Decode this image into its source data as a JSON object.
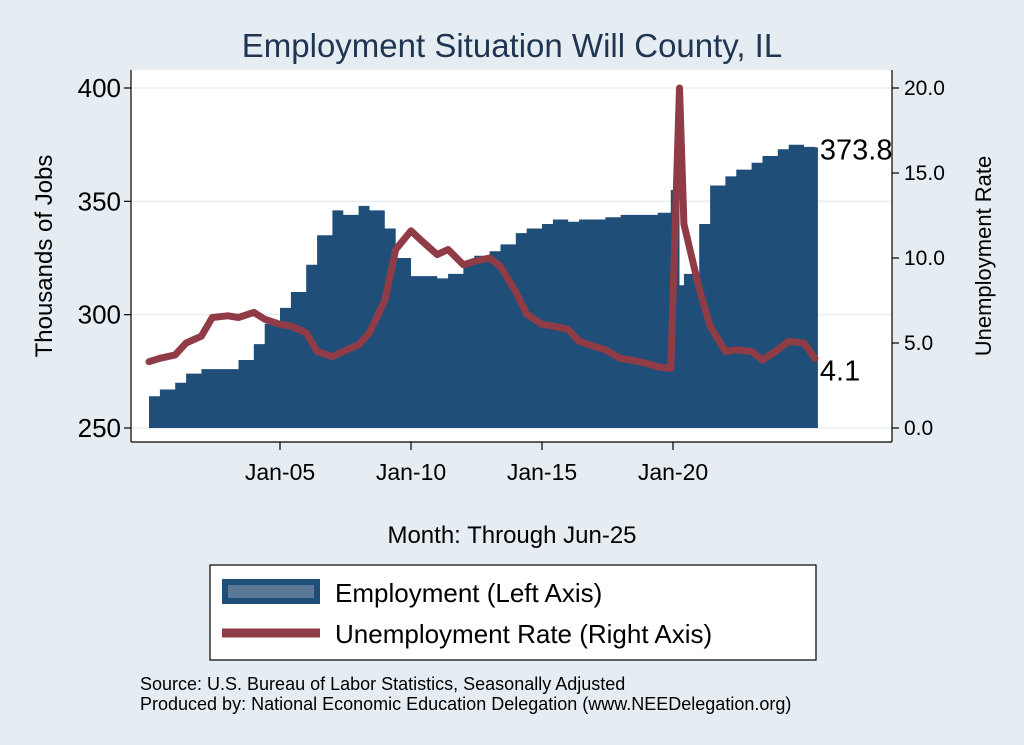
{
  "chart_data": {
    "type": "area+line",
    "title": "Employment Situation Will  County, IL",
    "xlabel": "Month: Through Jun-25",
    "ylabel_left": "Thousands of Jobs",
    "ylabel_right": "Unemployment Rate",
    "x_range": [
      "Jan-00",
      "Jun-25"
    ],
    "x_ticks": [
      "Jan-05",
      "Jan-10",
      "Jan-15",
      "Jan-20"
    ],
    "y_left_range": [
      250,
      400
    ],
    "y_left_ticks": [
      "250",
      "300",
      "350",
      "400"
    ],
    "y_right_range": [
      0,
      20
    ],
    "y_right_ticks": [
      "0.0",
      "5.0",
      "10.0",
      "15.0",
      "20.0"
    ],
    "grid": true,
    "legend_position": "bottom",
    "colors": {
      "employment": "#1f4e79",
      "unemployment": "#903c46",
      "background": "#e6edf2",
      "plot": "#ffffff"
    },
    "series": [
      {
        "name": "Employment (Left Axis)",
        "axis": "left",
        "type": "area",
        "points": [
          [
            "2000-01",
            264
          ],
          [
            "2000-06",
            267
          ],
          [
            "2001-01",
            270
          ],
          [
            "2001-06",
            274
          ],
          [
            "2002-01",
            276
          ],
          [
            "2002-06",
            276
          ],
          [
            "2003-01",
            276
          ],
          [
            "2003-06",
            280
          ],
          [
            "2004-01",
            287
          ],
          [
            "2004-06",
            296
          ],
          [
            "2005-01",
            303
          ],
          [
            "2005-06",
            310
          ],
          [
            "2006-01",
            322
          ],
          [
            "2006-06",
            335
          ],
          [
            "2007-01",
            346
          ],
          [
            "2007-06",
            344
          ],
          [
            "2008-01",
            348
          ],
          [
            "2008-06",
            346
          ],
          [
            "2009-01",
            338
          ],
          [
            "2009-06",
            325
          ],
          [
            "2010-01",
            317
          ],
          [
            "2010-06",
            317
          ],
          [
            "2011-01",
            316
          ],
          [
            "2011-06",
            318
          ],
          [
            "2012-01",
            322
          ],
          [
            "2012-06",
            326
          ],
          [
            "2013-01",
            328
          ],
          [
            "2013-06",
            331
          ],
          [
            "2014-01",
            336
          ],
          [
            "2014-06",
            338
          ],
          [
            "2015-01",
            340
          ],
          [
            "2015-06",
            342
          ],
          [
            "2016-01",
            341
          ],
          [
            "2016-06",
            342
          ],
          [
            "2017-01",
            342
          ],
          [
            "2017-06",
            343
          ],
          [
            "2018-01",
            344
          ],
          [
            "2018-06",
            344
          ],
          [
            "2019-01",
            344
          ],
          [
            "2019-06",
            345
          ],
          [
            "2019-12",
            355
          ],
          [
            "2020-04",
            313
          ],
          [
            "2020-06",
            318
          ],
          [
            "2021-01",
            340
          ],
          [
            "2021-06",
            357
          ],
          [
            "2022-01",
            361
          ],
          [
            "2022-06",
            364
          ],
          [
            "2023-01",
            367
          ],
          [
            "2023-06",
            370
          ],
          [
            "2024-01",
            373
          ],
          [
            "2024-06",
            375
          ],
          [
            "2025-01",
            374
          ],
          [
            "2025-06",
            373.8
          ]
        ]
      },
      {
        "name": "Unemployment Rate (Right Axis)",
        "axis": "right",
        "type": "line",
        "points": [
          [
            "2000-01",
            3.9
          ],
          [
            "2000-06",
            4.1
          ],
          [
            "2001-01",
            4.3
          ],
          [
            "2001-06",
            5.0
          ],
          [
            "2002-01",
            5.4
          ],
          [
            "2002-06",
            6.5
          ],
          [
            "2003-01",
            6.6
          ],
          [
            "2003-06",
            6.5
          ],
          [
            "2004-01",
            6.8
          ],
          [
            "2004-06",
            6.4
          ],
          [
            "2005-01",
            6.1
          ],
          [
            "2005-06",
            6.0
          ],
          [
            "2006-01",
            5.6
          ],
          [
            "2006-06",
            4.5
          ],
          [
            "2007-01",
            4.2
          ],
          [
            "2007-06",
            4.5
          ],
          [
            "2008-01",
            4.9
          ],
          [
            "2008-06",
            5.6
          ],
          [
            "2009-01",
            7.5
          ],
          [
            "2009-06",
            10.5
          ],
          [
            "2010-01",
            11.6
          ],
          [
            "2010-06",
            11.0
          ],
          [
            "2011-01",
            10.2
          ],
          [
            "2011-06",
            10.5
          ],
          [
            "2012-01",
            9.6
          ],
          [
            "2012-06",
            9.8
          ],
          [
            "2013-01",
            10.0
          ],
          [
            "2013-06",
            9.5
          ],
          [
            "2014-01",
            8.0
          ],
          [
            "2014-06",
            6.7
          ],
          [
            "2015-01",
            6.1
          ],
          [
            "2015-06",
            6.0
          ],
          [
            "2016-01",
            5.8
          ],
          [
            "2016-06",
            5.1
          ],
          [
            "2017-01",
            4.8
          ],
          [
            "2017-06",
            4.6
          ],
          [
            "2018-01",
            4.1
          ],
          [
            "2018-06",
            4.0
          ],
          [
            "2019-01",
            3.8
          ],
          [
            "2019-06",
            3.6
          ],
          [
            "2019-12",
            3.5
          ],
          [
            "2020-04",
            20.0
          ],
          [
            "2020-06",
            12.0
          ],
          [
            "2021-01",
            8.2
          ],
          [
            "2021-06",
            6.0
          ],
          [
            "2022-01",
            4.5
          ],
          [
            "2022-06",
            4.6
          ],
          [
            "2023-01",
            4.5
          ],
          [
            "2023-06",
            4.0
          ],
          [
            "2024-01",
            4.6
          ],
          [
            "2024-06",
            5.1
          ],
          [
            "2025-01",
            5.0
          ],
          [
            "2025-06",
            4.1
          ]
        ]
      }
    ],
    "end_labels": {
      "employment": "373.8",
      "unemployment": "4.1"
    }
  },
  "legend": {
    "employment_label": "Employment (Left Axis)",
    "unemployment_label": "Unemployment Rate (Right Axis)"
  },
  "footer": {
    "source": "Source: U.S. Bureau of Labor Statistics, Seasonally Adjusted",
    "produced_by": "Produced by: National Economic Education Delegation (www.NEEDelegation.org)"
  }
}
